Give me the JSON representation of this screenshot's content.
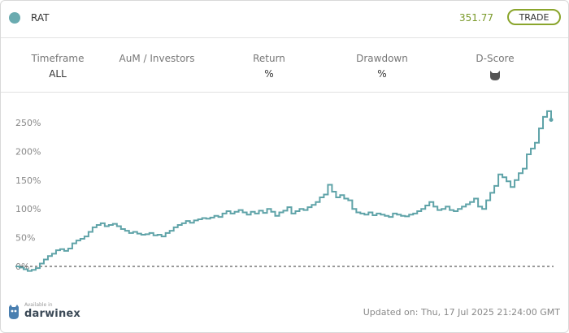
{
  "header": {
    "strategy_name": "RAT",
    "price": "351.77",
    "trade_label": "TRADE"
  },
  "stats": [
    {
      "label": "Timeframe",
      "value": "ALL"
    },
    {
      "label": "AuM / Investors",
      "value": ""
    },
    {
      "label": "Return",
      "value": "%"
    },
    {
      "label": "Drawdown",
      "value": "%"
    },
    {
      "label": "D-Score",
      "value": ""
    }
  ],
  "colors": {
    "line": "#5fa3a8",
    "accent": "#8aa52c",
    "price": "#7a9a2a"
  },
  "chart_data": {
    "type": "line",
    "y_tick_labels": [
      "0%",
      "50%",
      "100%",
      "150%",
      "200%",
      "250%"
    ],
    "ylim": [
      -10,
      275
    ],
    "baseline": 0,
    "series": [
      {
        "values": [
          0,
          -2,
          -5,
          -8,
          -6,
          -3,
          5,
          12,
          18,
          22,
          28,
          30,
          27,
          31,
          40,
          45,
          48,
          52,
          60,
          68,
          72,
          75,
          70,
          72,
          74,
          70,
          65,
          62,
          58,
          60,
          57,
          55,
          56,
          58,
          54,
          55,
          52,
          58,
          62,
          68,
          72,
          75,
          79,
          76,
          80,
          82,
          84,
          83,
          85,
          88,
          86,
          92,
          96,
          92,
          95,
          98,
          94,
          90,
          95,
          92,
          97,
          93,
          100,
          95,
          88,
          94,
          97,
          103,
          92,
          96,
          100,
          98,
          103,
          107,
          112,
          120,
          125,
          142,
          130,
          120,
          124,
          118,
          115,
          100,
          94,
          92,
          90,
          94,
          89,
          92,
          90,
          88,
          86,
          92,
          90,
          88,
          87,
          90,
          92,
          96,
          100,
          106,
          112,
          104,
          98,
          100,
          104,
          98,
          96,
          100,
          104,
          108,
          112,
          118,
          104,
          100,
          115,
          128,
          140,
          160,
          155,
          148,
          138,
          150,
          162,
          170,
          195,
          205,
          215,
          240,
          260,
          270,
          255
        ]
      }
    ]
  },
  "footer": {
    "available_in": "Available in",
    "brand": "darwinex",
    "updated_label": "Updated on:",
    "updated_value": "Thu, 17 Jul 2025 21:24:00 GMT"
  }
}
